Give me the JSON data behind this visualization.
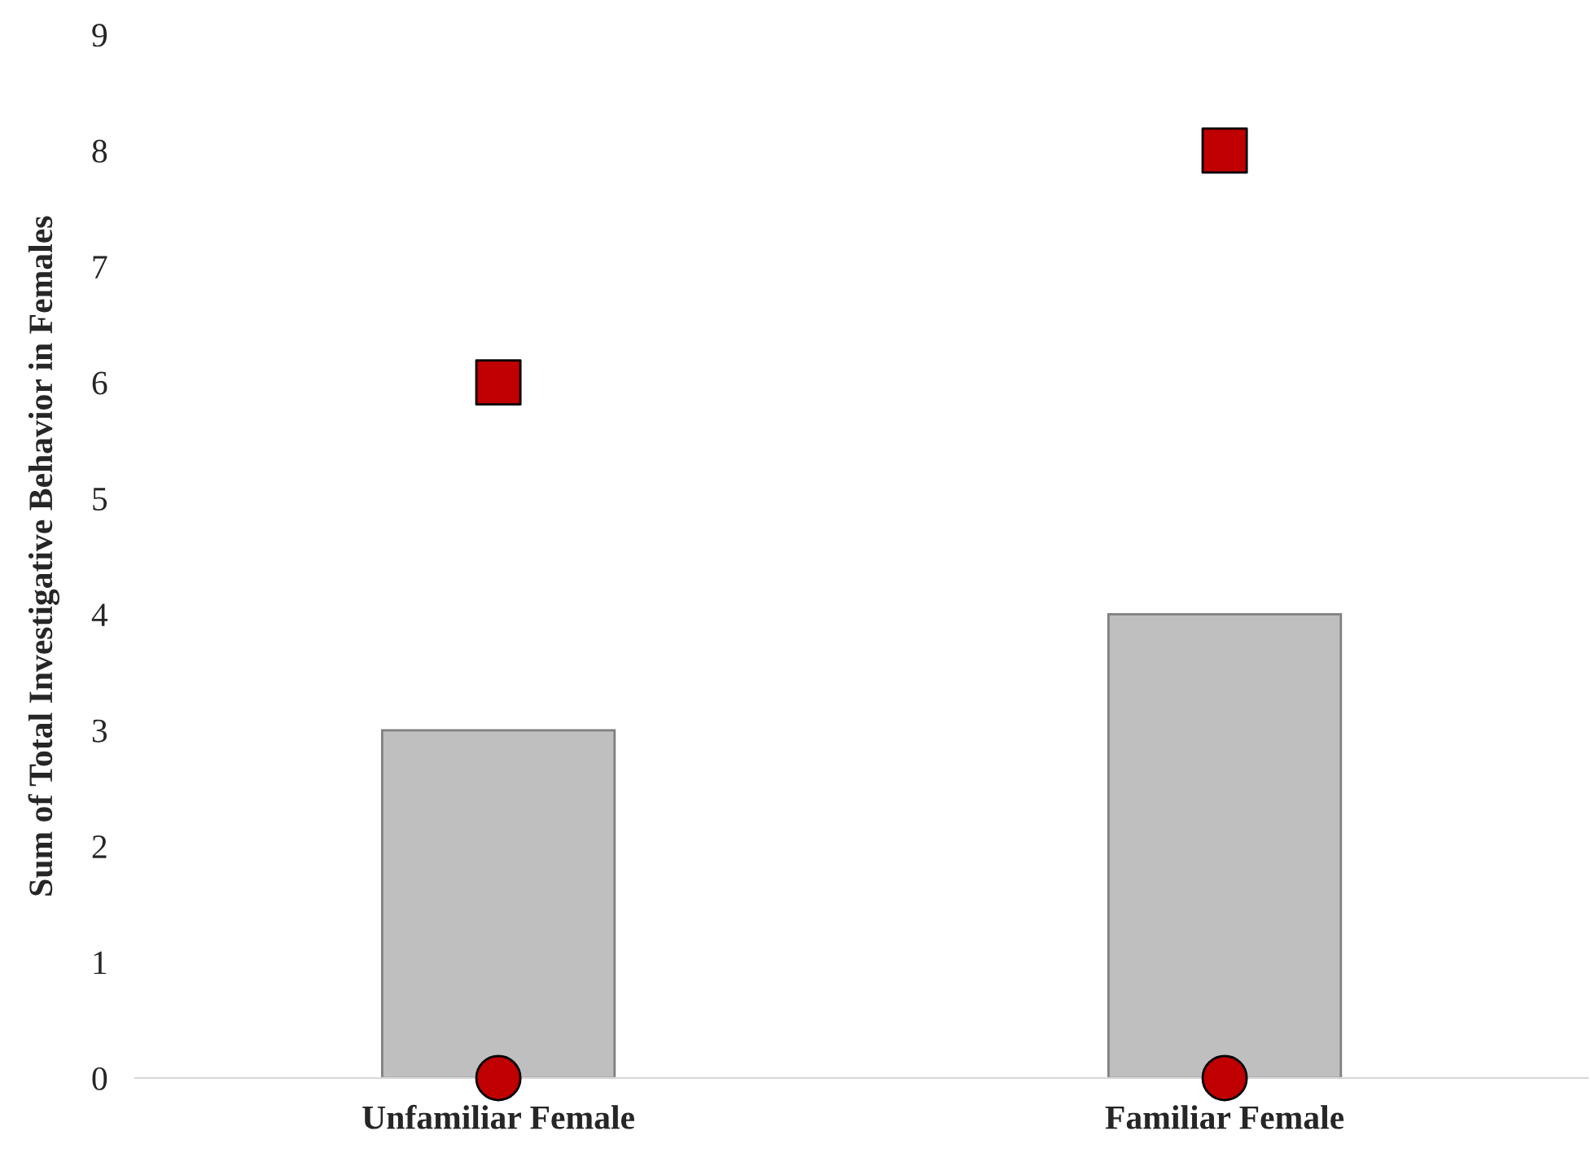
{
  "chart_data": {
    "type": "bar",
    "ylabel": "Sum of Total Investigative Behavior in Females",
    "categories": [
      "Unfamiliar Female",
      "Familiar Female"
    ],
    "series": [
      {
        "color": "#bfbfbf",
        "values": [
          3,
          4
        ]
      },
      {
        "type": "scatter",
        "marker": "square",
        "color": "#c00000",
        "values": [
          6,
          8
        ]
      },
      {
        "type": "scatter",
        "marker": "circle",
        "color": "#c00000",
        "values": [
          0,
          0
        ]
      }
    ],
    "ylim": [
      0,
      9
    ],
    "yticks": [
      0,
      1,
      2,
      3,
      4,
      5,
      6,
      7,
      8,
      9
    ],
    "grid": false,
    "legend": false
  }
}
